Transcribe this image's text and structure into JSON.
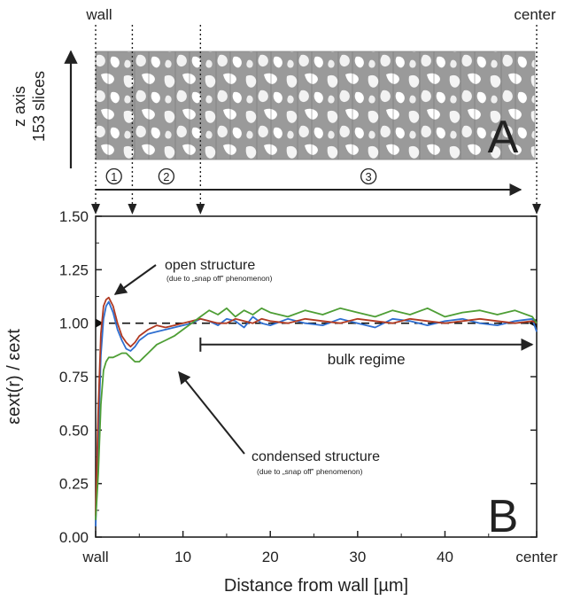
{
  "panel_a": {
    "label": "A",
    "wall_label": "wall",
    "center_label": "center",
    "axis_label_line1": "z axis",
    "axis_label_line2": "153 slices",
    "regions": [
      "1",
      "2",
      "3"
    ],
    "region_markers_um": [
      0,
      4.2,
      12.0,
      50.5
    ]
  },
  "chart_data": {
    "type": "line",
    "panel_label": "B",
    "xlabel": "Distance from wall   [µm]",
    "ylabel": "εext(r) / εext",
    "xlim": [
      0,
      50.5
    ],
    "ylim": [
      0,
      1.5
    ],
    "x_ticks": [
      {
        "value": 0,
        "label": "wall"
      },
      {
        "value": 10,
        "label": "10"
      },
      {
        "value": 20,
        "label": "20"
      },
      {
        "value": 30,
        "label": "30"
      },
      {
        "value": 40,
        "label": "40"
      },
      {
        "value": 50.5,
        "label": "center"
      }
    ],
    "y_ticks": [
      0,
      0.25,
      0.5,
      0.75,
      1.0,
      1.25,
      1.5
    ],
    "y_tick_labels": [
      "0.00",
      "0.25",
      "0.50",
      "0.75",
      "1.00",
      "1.25",
      "1.50"
    ],
    "reference_line": 1.0,
    "grid": false,
    "legend": "none",
    "series": [
      {
        "color": "#2f6fd0",
        "x": [
          0,
          0.3,
          0.6,
          0.9,
          1.2,
          1.5,
          2,
          2.5,
          3,
          3.5,
          4,
          4.5,
          5,
          6,
          7,
          8,
          9,
          10,
          11,
          12,
          13,
          14,
          15,
          16,
          17,
          18,
          19,
          20,
          22,
          24,
          26,
          28,
          30,
          32,
          34,
          36,
          38,
          40,
          42,
          44,
          46,
          48,
          50,
          50.5
        ],
        "y": [
          0.05,
          0.45,
          0.85,
          1.02,
          1.08,
          1.1,
          1.05,
          0.97,
          0.92,
          0.88,
          0.87,
          0.89,
          0.92,
          0.95,
          0.96,
          0.97,
          0.98,
          0.99,
          1.0,
          1.02,
          1.01,
          0.99,
          1.02,
          1.01,
          0.98,
          1.03,
          1.0,
          0.99,
          1.02,
          1.0,
          0.99,
          1.02,
          1.0,
          0.98,
          1.02,
          1.01,
          0.99,
          1.01,
          1.02,
          1.0,
          0.99,
          1.01,
          1.02,
          0.96
        ]
      },
      {
        "color": "#b03a22",
        "x": [
          0,
          0.3,
          0.6,
          0.9,
          1.2,
          1.5,
          2,
          2.5,
          3,
          3.5,
          4,
          4.5,
          5,
          6,
          7,
          8,
          9,
          10,
          11,
          12,
          13,
          14,
          15,
          16,
          17,
          18,
          19,
          20,
          22,
          24,
          26,
          28,
          30,
          32,
          34,
          36,
          38,
          40,
          42,
          44,
          46,
          48,
          50,
          50.5
        ],
        "y": [
          0.1,
          0.6,
          0.95,
          1.08,
          1.11,
          1.12,
          1.08,
          1.0,
          0.94,
          0.91,
          0.89,
          0.91,
          0.94,
          0.97,
          0.99,
          0.98,
          0.99,
          1.0,
          1.01,
          1.02,
          1.01,
          1.0,
          1.0,
          1.02,
          1.01,
          1.0,
          1.02,
          1.01,
          1.0,
          1.02,
          1.01,
          1.0,
          1.02,
          1.01,
          1.0,
          1.02,
          1.01,
          1.0,
          1.01,
          1.02,
          1.01,
          1.0,
          1.01,
          1.0
        ]
      },
      {
        "color": "#4e9e35",
        "x": [
          0,
          0.3,
          0.6,
          0.9,
          1.2,
          1.5,
          2,
          2.5,
          3,
          3.5,
          4,
          4.5,
          5,
          5.5,
          6,
          7,
          8,
          9,
          10,
          11,
          12,
          13,
          14,
          15,
          16,
          17,
          18,
          19,
          20,
          22,
          24,
          26,
          28,
          30,
          32,
          34,
          36,
          38,
          40,
          42,
          44,
          46,
          48,
          50,
          50.5
        ],
        "y": [
          0.08,
          0.3,
          0.62,
          0.78,
          0.82,
          0.84,
          0.84,
          0.85,
          0.86,
          0.86,
          0.84,
          0.82,
          0.82,
          0.84,
          0.86,
          0.9,
          0.92,
          0.94,
          0.97,
          1.0,
          1.03,
          1.06,
          1.04,
          1.07,
          1.03,
          1.06,
          1.04,
          1.07,
          1.05,
          1.03,
          1.06,
          1.04,
          1.07,
          1.05,
          1.03,
          1.06,
          1.04,
          1.07,
          1.03,
          1.05,
          1.06,
          1.04,
          1.06,
          1.03,
          1.0
        ]
      }
    ],
    "annotations": [
      {
        "text": "open structure",
        "subtext": "(due to „snap off‟ phenomenon)",
        "target_x": 1.3,
        "target_y": 1.11
      },
      {
        "text": "condensed structure",
        "subtext": "(due to „snap off‟ phenomenon)",
        "target_x": 9.0,
        "target_y": 0.76
      },
      {
        "text": "bulk regime",
        "x_start": 12.0,
        "x_end": 50.0,
        "y": 0.9
      }
    ]
  }
}
